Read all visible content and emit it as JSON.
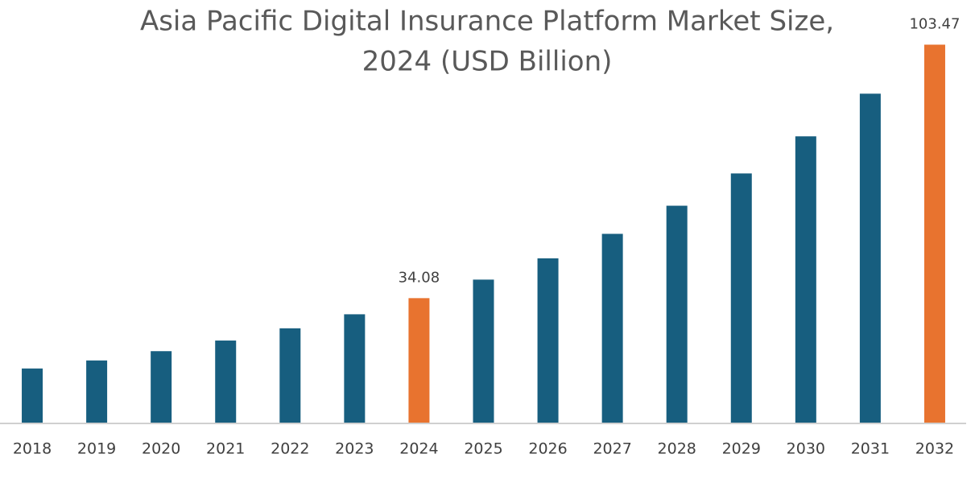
{
  "chart_data": {
    "type": "bar",
    "title": [
      "Asia Pacific Digital Insurance Platform Market Size,",
      "2024 (USD Billion)"
    ],
    "categories": [
      "2018",
      "2019",
      "2020",
      "2021",
      "2022",
      "2023",
      "2024",
      "2025",
      "2026",
      "2027",
      "2028",
      "2029",
      "2030",
      "2031",
      "2032"
    ],
    "values": [
      14.82,
      17.02,
      19.56,
      22.47,
      25.82,
      29.66,
      34.08,
      39.15,
      44.98,
      51.68,
      59.38,
      68.22,
      78.38,
      90.05,
      103.47
    ],
    "value_labels": [
      null,
      null,
      null,
      null,
      null,
      null,
      "34.08",
      null,
      null,
      null,
      null,
      null,
      null,
      null,
      "103.47"
    ],
    "colors": [
      "#175e7f",
      "#175e7f",
      "#175e7f",
      "#175e7f",
      "#175e7f",
      "#175e7f",
      "#e8732f",
      "#175e7f",
      "#175e7f",
      "#175e7f",
      "#175e7f",
      "#175e7f",
      "#175e7f",
      "#175e7f",
      "#e8732f"
    ],
    "ylim": [
      0,
      106
    ]
  }
}
